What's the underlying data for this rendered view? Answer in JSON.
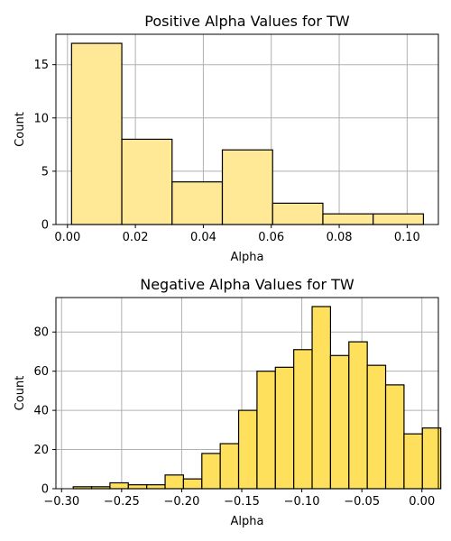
{
  "chart_data": [
    {
      "type": "bar",
      "title": "Positive Alpha Values for TW",
      "xlabel": "Alpha",
      "ylabel": "Count",
      "color": "#ffe997",
      "edge_color": "#000000",
      "grid": true,
      "xlim": [
        -0.0034,
        0.1092
      ],
      "ylim": [
        0,
        17.85
      ],
      "xticks": [
        0.0,
        0.02,
        0.04,
        0.06,
        0.08,
        0.1
      ],
      "xtick_labels": [
        "0.00",
        "0.02",
        "0.04",
        "0.06",
        "0.08",
        "0.10"
      ],
      "yticks": [
        0,
        5,
        10,
        15
      ],
      "ytick_labels": [
        "0",
        "5",
        "10",
        "15"
      ],
      "bins": [
        {
          "x0": 0.0012,
          "x1": 0.016,
          "count": 17
        },
        {
          "x0": 0.016,
          "x1": 0.0308,
          "count": 8
        },
        {
          "x0": 0.0308,
          "x1": 0.0456,
          "count": 4
        },
        {
          "x0": 0.0456,
          "x1": 0.0604,
          "count": 7
        },
        {
          "x0": 0.0604,
          "x1": 0.0752,
          "count": 2
        },
        {
          "x0": 0.0752,
          "x1": 0.09,
          "count": 1
        },
        {
          "x0": 0.09,
          "x1": 0.1048,
          "count": 1
        }
      ]
    },
    {
      "type": "bar",
      "title": "Negative Alpha Values for TW",
      "xlabel": "Alpha",
      "ylabel": "Count",
      "color": "#ffe05c",
      "edge_color": "#000000",
      "grid": true,
      "xlim": [
        -0.3047,
        0.0137
      ],
      "ylim": [
        0,
        97.6
      ],
      "xticks": [
        -0.3,
        -0.25,
        -0.2,
        -0.15,
        -0.1,
        -0.05,
        0.0
      ],
      "xtick_labels": [
        "−0.30",
        "−0.25",
        "−0.20",
        "−0.15",
        "−0.10",
        "−0.05",
        "0.00"
      ],
      "yticks": [
        0,
        20,
        40,
        60,
        80
      ],
      "ytick_labels": [
        "0",
        "20",
        "40",
        "60",
        "80"
      ],
      "bins": [
        {
          "x0": -0.2903,
          "x1": -0.275,
          "count": 1
        },
        {
          "x0": -0.275,
          "x1": -0.2597,
          "count": 1
        },
        {
          "x0": -0.2597,
          "x1": -0.2444,
          "count": 3
        },
        {
          "x0": -0.2444,
          "x1": -0.2291,
          "count": 2
        },
        {
          "x0": -0.2291,
          "x1": -0.2138,
          "count": 2
        },
        {
          "x0": -0.2138,
          "x1": -0.1985,
          "count": 7
        },
        {
          "x0": -0.1985,
          "x1": -0.1832,
          "count": 5
        },
        {
          "x0": -0.1832,
          "x1": -0.1679,
          "count": 18
        },
        {
          "x0": -0.1679,
          "x1": -0.1526,
          "count": 23
        },
        {
          "x0": -0.1526,
          "x1": -0.1373,
          "count": 40
        },
        {
          "x0": -0.1373,
          "x1": -0.122,
          "count": 60
        },
        {
          "x0": -0.122,
          "x1": -0.1067,
          "count": 62
        },
        {
          "x0": -0.1067,
          "x1": -0.0914,
          "count": 71
        },
        {
          "x0": -0.0914,
          "x1": -0.0761,
          "count": 93
        },
        {
          "x0": -0.0761,
          "x1": -0.0608,
          "count": 68
        },
        {
          "x0": -0.0608,
          "x1": -0.0455,
          "count": 75
        },
        {
          "x0": -0.0455,
          "x1": -0.0302,
          "count": 63
        },
        {
          "x0": -0.0302,
          "x1": -0.0149,
          "count": 53
        },
        {
          "x0": -0.0149,
          "x1": 0.0004,
          "count": 28
        },
        {
          "x0": 0.0004,
          "x1": 0.0157,
          "count": 31
        }
      ]
    }
  ]
}
